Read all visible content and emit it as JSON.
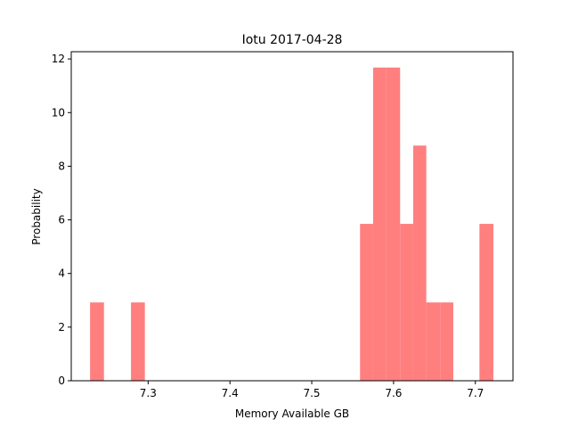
{
  "chart_data": {
    "type": "bar",
    "title": "Iotu 2017-04-28",
    "xlabel": "Memory Available GB",
    "ylabel": "Probability",
    "xlim": [
      7.206,
      7.746
    ],
    "ylim": [
      0,
      12.27
    ],
    "xticks": [
      7.3,
      7.4,
      7.5,
      7.6,
      7.7
    ],
    "yticks": [
      0,
      2,
      4,
      6,
      8,
      10,
      12
    ],
    "grid": false,
    "bar_color": "#ff7f7f",
    "bin_width": 0.0163,
    "bins": [
      {
        "x0": 7.229,
        "x1": 7.246,
        "value": 2.92
      },
      {
        "x0": 7.279,
        "x1": 7.296,
        "value": 2.92
      },
      {
        "x0": 7.559,
        "x1": 7.575,
        "value": 5.85
      },
      {
        "x0": 7.575,
        "x1": 7.591,
        "value": 11.68
      },
      {
        "x0": 7.591,
        "x1": 7.608,
        "value": 11.68
      },
      {
        "x0": 7.608,
        "x1": 7.624,
        "value": 5.85
      },
      {
        "x0": 7.624,
        "x1": 7.64,
        "value": 8.77
      },
      {
        "x0": 7.64,
        "x1": 7.657,
        "value": 2.92
      },
      {
        "x0": 7.657,
        "x1": 7.673,
        "value": 2.92
      },
      {
        "x0": 7.705,
        "x1": 7.722,
        "value": 5.85
      }
    ]
  }
}
